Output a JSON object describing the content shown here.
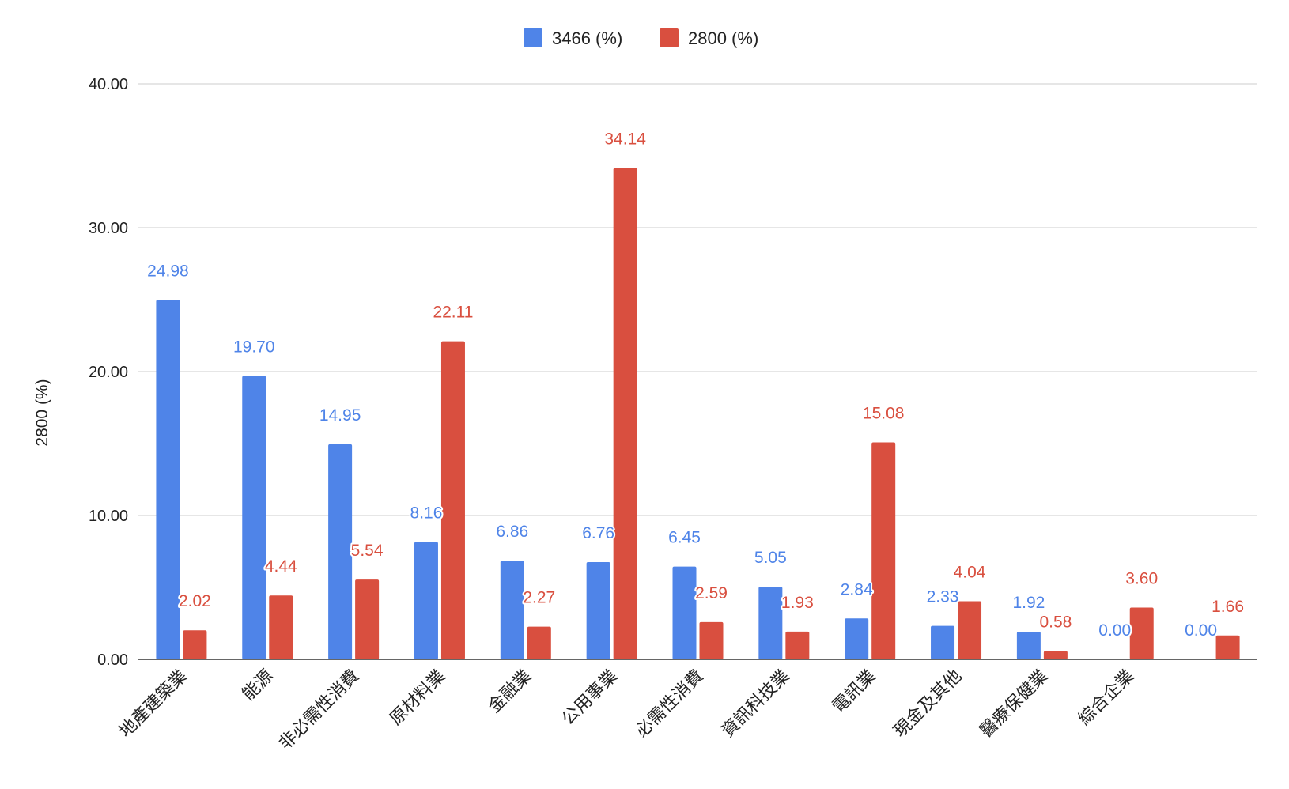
{
  "chart_data": {
    "type": "bar",
    "title": "",
    "xlabel": "",
    "ylabel": "2800 (%)",
    "ylim": [
      0,
      40
    ],
    "yticks": [
      "0.00",
      "10.00",
      "20.00",
      "30.00",
      "40.00"
    ],
    "grid": true,
    "legend_position": "top",
    "categories": [
      "地產建築業",
      "能源",
      "非必需性消費",
      "原材料業",
      "金融業",
      "公用事業",
      "必需性消費",
      "資訊科技業",
      "電訊業",
      "現金及其他",
      "醫療保健業",
      "綜合企業",
      ""
    ],
    "series": [
      {
        "name": "3466 (%)",
        "color": "#4f84e8",
        "values": [
          24.98,
          19.7,
          14.95,
          8.16,
          6.86,
          6.76,
          6.45,
          5.05,
          2.84,
          2.33,
          1.92,
          0.0,
          0.0
        ],
        "labels": [
          "24.98",
          "19.70",
          "14.95",
          "8.16",
          "6.86",
          "6.76",
          "6.45",
          "5.05",
          "2.84",
          "2.33",
          "1.92",
          "0.00",
          "0.00"
        ]
      },
      {
        "name": "2800 (%)",
        "color": "#d94f3f",
        "values": [
          2.02,
          4.44,
          5.54,
          22.11,
          2.27,
          34.14,
          2.59,
          1.93,
          15.08,
          4.04,
          0.58,
          3.6,
          1.66
        ],
        "labels": [
          "2.02",
          "4.44",
          "5.54",
          "22.11",
          "2.27",
          "34.14",
          "2.59",
          "1.93",
          "15.08",
          "4.04",
          "0.58",
          "3.60",
          "1.66"
        ]
      }
    ]
  }
}
